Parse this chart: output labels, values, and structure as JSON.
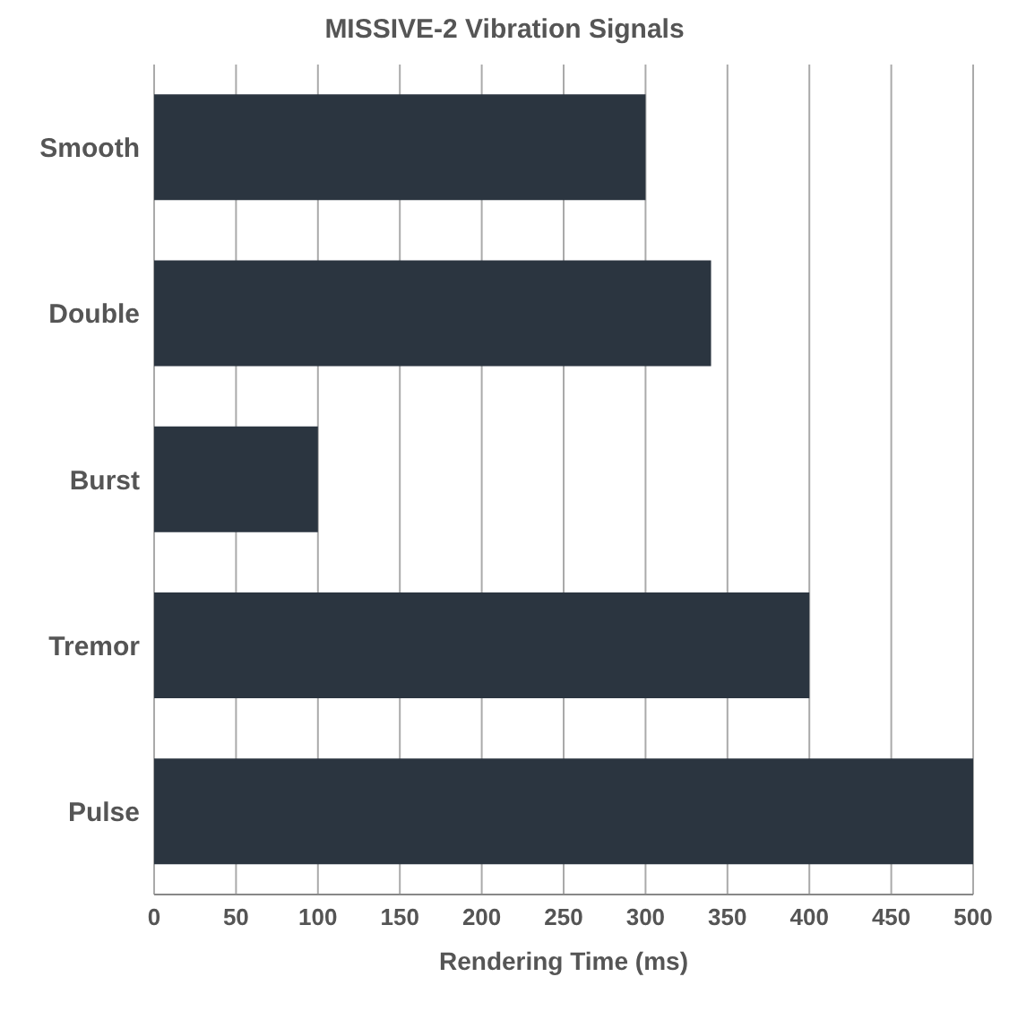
{
  "chart_data": {
    "type": "bar",
    "orientation": "horizontal",
    "title": "MISSIVE-2 Vibration Signals",
    "xlabel": "Rendering Time (ms)",
    "categories": [
      "Smooth",
      "Double",
      "Burst",
      "Tremor",
      "Pulse"
    ],
    "values": [
      300,
      340,
      100,
      400,
      500
    ],
    "color": "#2b3540",
    "xlim": [
      0,
      500
    ],
    "xticks": [
      0,
      50,
      100,
      150,
      200,
      250,
      300,
      350,
      400,
      450,
      500
    ],
    "grid": "x"
  }
}
